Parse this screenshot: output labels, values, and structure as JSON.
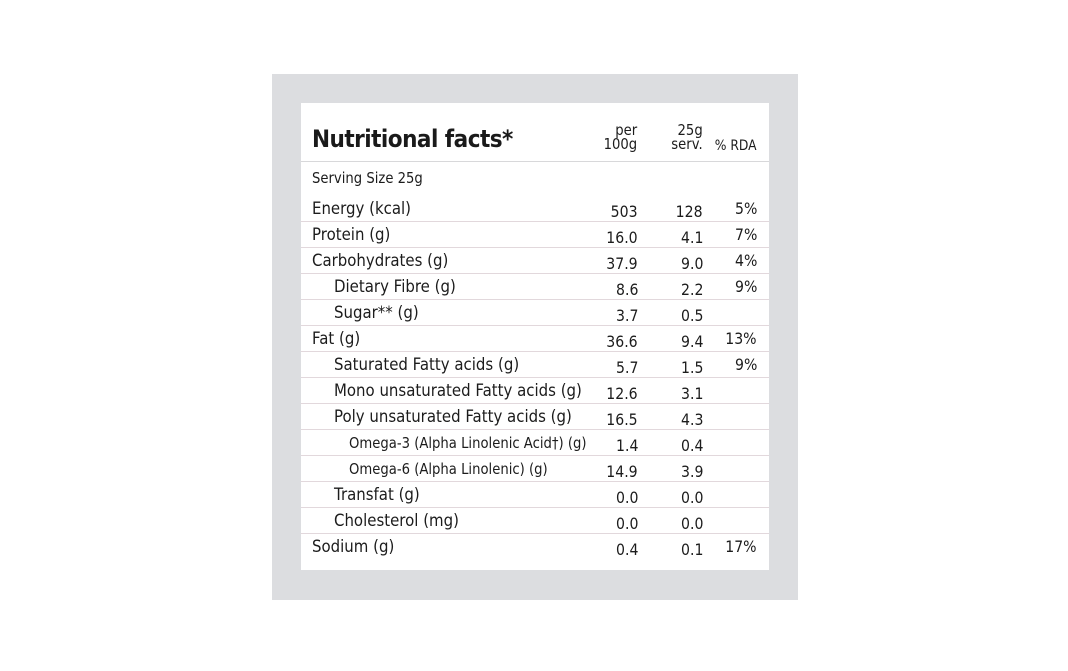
{
  "table": {
    "title": "Nutritional facts*",
    "headers": {
      "per100_line1": "per",
      "per100_line2": "100g",
      "serv_line1": "25g",
      "serv_line2": "serv.",
      "rda": "% RDA"
    },
    "serving_size": "Serving Size 25g",
    "rows": [
      {
        "name": "Energy (kcal)",
        "per100": "503",
        "serv": "128",
        "rda": "5%"
      },
      {
        "name": "Protein (g)",
        "per100": "16.0",
        "serv": "4.1",
        "rda": "7%"
      },
      {
        "name": "Carbohydrates (g)",
        "per100": "37.9",
        "serv": "9.0",
        "rda": "4%"
      },
      {
        "name": "Dietary Fibre (g)",
        "per100": "8.6",
        "serv": "2.2",
        "rda": "9%"
      },
      {
        "name": "Sugar** (g)",
        "per100": "3.7",
        "serv": "0.5",
        "rda": ""
      },
      {
        "name": "Fat (g)",
        "per100": "36.6",
        "serv": "9.4",
        "rda": "13%"
      },
      {
        "name": "Saturated Fatty acids (g)",
        "per100": "5.7",
        "serv": "1.5",
        "rda": "9%"
      },
      {
        "name": "Mono unsaturated Fatty acids (g)",
        "per100": "12.6",
        "serv": "3.1",
        "rda": ""
      },
      {
        "name": "Poly unsaturated Fatty acids (g)",
        "per100": "16.5",
        "serv": "4.3",
        "rda": ""
      },
      {
        "name": "Omega-3 (Alpha Linolenic Acid†) (g)",
        "per100": "1.4",
        "serv": "0.4",
        "rda": ""
      },
      {
        "name": "Omega-6 (Alpha Linolenic) (g)",
        "per100": "14.9",
        "serv": "3.9",
        "rda": ""
      },
      {
        "name": "Transfat (g)",
        "per100": "0.0",
        "serv": "0.0",
        "rda": ""
      },
      {
        "name": "Cholesterol (mg)",
        "per100": "0.0",
        "serv": "0.0",
        "rda": ""
      },
      {
        "name": "Sodium (g)",
        "per100": "0.4",
        "serv": "0.1",
        "rda": "17%"
      }
    ]
  },
  "colors": {
    "frame": "#dcdde0",
    "panel": "#ffffff",
    "text": "#1c1c1c",
    "row_divider": "#e2d8dc"
  }
}
